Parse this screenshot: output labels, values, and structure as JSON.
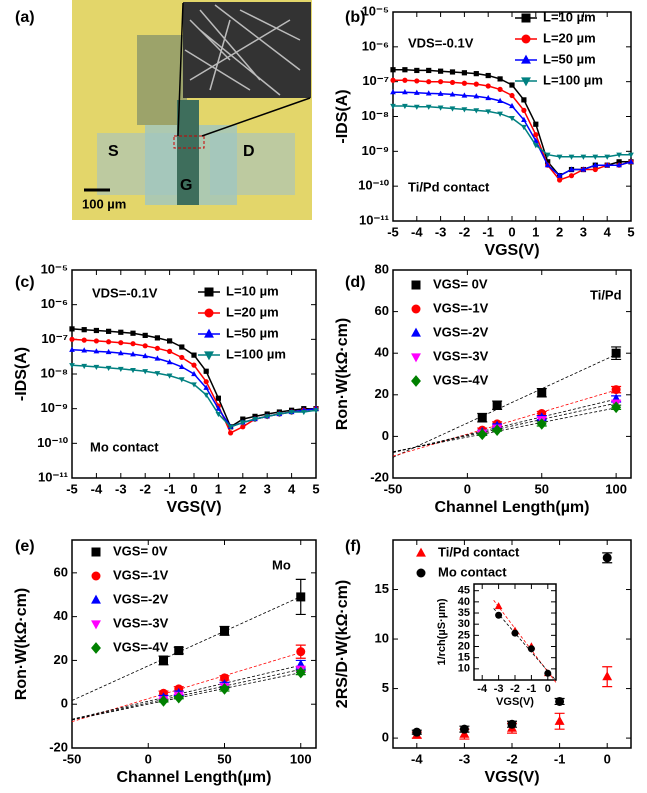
{
  "panel_a": {
    "label": "(a)",
    "source": "S",
    "drain": "D",
    "gate": "G",
    "scale_bar": "100 µm"
  },
  "chart_data": [
    {
      "type": "line",
      "panel_label": "(b)",
      "xlabel": "VGS(V)",
      "ylabel": "-IDS(A)",
      "log_y": true,
      "annotations": [
        "VDS=-0.1V",
        "Ti/Pd contact"
      ],
      "legend": "upper right",
      "x": [
        -5,
        -4.5,
        -4,
        -3.5,
        -3,
        -2.5,
        -2,
        -1.5,
        -1,
        -0.5,
        0,
        0.5,
        1,
        1.5,
        2,
        2.5,
        3,
        3.5,
        4,
        4.5,
        5
      ],
      "xlim": [
        -5,
        5
      ],
      "xticks": [
        -5,
        -4,
        -3,
        -2,
        -1,
        0,
        1,
        2,
        3,
        4,
        5
      ],
      "ylim": [
        1e-11,
        1e-05
      ],
      "yticks": [
        {
          "value": 1e-11,
          "label": "10⁻¹¹"
        },
        {
          "value": 1e-10,
          "label": "10⁻¹⁰"
        },
        {
          "value": 1e-09,
          "label": "10⁻⁹"
        },
        {
          "value": 1e-08,
          "label": "10⁻⁸"
        },
        {
          "value": 1e-07,
          "label": "10⁻⁷"
        },
        {
          "value": 1e-06,
          "label": "10⁻⁶"
        },
        {
          "value": 1e-05,
          "label": "10⁻⁵"
        }
      ],
      "series": [
        {
          "name": "L=10 µm",
          "color": "#000000",
          "marker": "square",
          "values": [
            2.2e-07,
            2.2e-07,
            2.1e-07,
            2.1e-07,
            2e-07,
            1.9e-07,
            1.8e-07,
            1.7e-07,
            1.5e-07,
            1.2e-07,
            8e-08,
            3e-08,
            6e-09,
            5e-10,
            2e-10,
            3e-10,
            3e-10,
            4e-10,
            4e-10,
            5e-10,
            5e-10
          ]
        },
        {
          "name": "L=20 µm",
          "color": "#ff0000",
          "marker": "circle",
          "values": [
            1.1e-07,
            1.1e-07,
            1.05e-07,
            1e-07,
            1e-07,
            9.5e-08,
            9e-08,
            8.5e-08,
            7.5e-08,
            6e-08,
            4e-08,
            1.5e-08,
            3e-09,
            4e-10,
            1.5e-10,
            2e-10,
            3e-10,
            3e-10,
            4e-10,
            4e-10,
            5e-10
          ]
        },
        {
          "name": "L=50 µm",
          "color": "#0000ff",
          "marker": "triangle",
          "values": [
            5e-08,
            5e-08,
            4.8e-08,
            4.6e-08,
            4.5e-08,
            4.3e-08,
            4e-08,
            3.8e-08,
            3.4e-08,
            2.8e-08,
            2e-08,
            8e-09,
            2e-09,
            4e-10,
            2e-10,
            3e-10,
            3e-10,
            4e-10,
            4e-10,
            4e-10,
            5e-10
          ]
        },
        {
          "name": "L=100 µm",
          "color": "#008080",
          "marker": "triangle-down",
          "values": [
            2e-08,
            2e-08,
            1.9e-08,
            1.9e-08,
            1.8e-08,
            1.7e-08,
            1.6e-08,
            1.5e-08,
            1.4e-08,
            1.2e-08,
            9e-09,
            5e-09,
            1.5e-09,
            8e-10,
            7e-10,
            7e-10,
            7e-10,
            7e-10,
            7e-10,
            8e-10,
            8e-10
          ]
        }
      ]
    },
    {
      "type": "line",
      "panel_label": "(c)",
      "xlabel": "VGS(V)",
      "ylabel": "-IDS(A)",
      "log_y": true,
      "annotations": [
        "VDS=-0.1V",
        "Mo contact"
      ],
      "legend": "upper right",
      "x": [
        -5,
        -4.5,
        -4,
        -3.5,
        -3,
        -2.5,
        -2,
        -1.5,
        -1,
        -0.5,
        0,
        0.5,
        1,
        1.5,
        2,
        2.5,
        3,
        3.5,
        4,
        4.5,
        5
      ],
      "xlim": [
        -5,
        5
      ],
      "xticks": [
        -5,
        -4,
        -3,
        -2,
        -1,
        0,
        1,
        2,
        3,
        4,
        5
      ],
      "ylim": [
        1e-11,
        1e-05
      ],
      "yticks": [
        {
          "value": 1e-11,
          "label": "10⁻¹¹"
        },
        {
          "value": 1e-10,
          "label": "10⁻¹⁰"
        },
        {
          "value": 1e-09,
          "label": "10⁻⁹"
        },
        {
          "value": 1e-08,
          "label": "10⁻⁸"
        },
        {
          "value": 1e-07,
          "label": "10⁻⁷"
        },
        {
          "value": 1e-06,
          "label": "10⁻⁶"
        },
        {
          "value": 1e-05,
          "label": "10⁻⁵"
        }
      ],
      "series": [
        {
          "name": "L=10 µm",
          "color": "#000000",
          "marker": "square",
          "values": [
            2e-07,
            1.9e-07,
            1.8e-07,
            1.7e-07,
            1.6e-07,
            1.5e-07,
            1.3e-07,
            1.1e-07,
            9e-08,
            6e-08,
            3.5e-08,
            1.2e-08,
            2e-09,
            3e-10,
            5e-10,
            6e-10,
            7e-10,
            8e-10,
            9e-10,
            1e-09,
            1e-09
          ]
        },
        {
          "name": "L=20 µm",
          "color": "#ff0000",
          "marker": "circle",
          "values": [
            1e-07,
            9.5e-08,
            9e-08,
            8.5e-08,
            8e-08,
            7.5e-08,
            6.5e-08,
            5.5e-08,
            4.5e-08,
            3e-08,
            1.8e-08,
            6e-09,
            1.2e-09,
            2e-10,
            3e-10,
            5e-10,
            6e-10,
            7e-10,
            8e-10,
            9e-10,
            1e-09
          ]
        },
        {
          "name": "L=50 µm",
          "color": "#0000ff",
          "marker": "triangle",
          "values": [
            5e-08,
            4.8e-08,
            4.5e-08,
            4.3e-08,
            4e-08,
            3.7e-08,
            3.3e-08,
            2.8e-08,
            2.2e-08,
            1.6e-08,
            1e-08,
            4e-09,
            1e-09,
            3e-10,
            4e-10,
            5e-10,
            6e-10,
            7e-10,
            8e-10,
            9e-10,
            1e-09
          ]
        },
        {
          "name": "L=100 µm",
          "color": "#008080",
          "marker": "triangle-down",
          "values": [
            1.8e-08,
            1.7e-08,
            1.6e-08,
            1.5e-08,
            1.4e-08,
            1.3e-08,
            1.2e-08,
            1.05e-08,
            9e-09,
            7e-09,
            5e-09,
            2.5e-09,
            7e-10,
            3e-10,
            4e-10,
            5e-10,
            6e-10,
            7e-10,
            8e-10,
            8e-10,
            9e-10
          ]
        }
      ]
    },
    {
      "type": "scatter",
      "panel_label": "(d)",
      "xlabel": "Channel Length(µm)",
      "ylabel": "Ron·W(kΩ·cm)",
      "fit": true,
      "annotations": [
        "Ti/Pd"
      ],
      "legend": "upper left",
      "x": [
        10,
        20,
        50,
        100
      ],
      "xlim": [
        -50,
        110
      ],
      "xticks": [
        -50,
        0,
        50,
        100
      ],
      "ylim": [
        -20,
        80
      ],
      "yticks": [
        -20,
        0,
        20,
        40,
        60,
        80
      ],
      "series": [
        {
          "name": "VGS= 0V",
          "color": "#000000",
          "marker": "square",
          "values": [
            9,
            15,
            21,
            40
          ],
          "errors": [
            2,
            2,
            2,
            3
          ]
        },
        {
          "name": "VGS=-1V",
          "color": "#ff0000",
          "marker": "circle",
          "values": [
            3,
            6,
            11,
            22.5
          ],
          "errors": [
            1,
            1,
            1,
            1.5
          ]
        },
        {
          "name": "VGS=-2V",
          "color": "#0000ff",
          "marker": "triangle",
          "values": [
            2,
            5,
            9,
            18
          ],
          "errors": [
            1,
            1,
            1,
            1.5
          ]
        },
        {
          "name": "VGS=-3V",
          "color": "#ff00ff",
          "marker": "triangle-down",
          "values": [
            1.5,
            4,
            8,
            16
          ],
          "errors": [
            0.5,
            0.5,
            1,
            1
          ]
        },
        {
          "name": "VGS=-4V",
          "color": "#008000",
          "marker": "diamond",
          "values": [
            1,
            3,
            6,
            14
          ],
          "errors": [
            0.5,
            0.5,
            1,
            1
          ]
        }
      ]
    },
    {
      "type": "scatter",
      "panel_label": "(e)",
      "xlabel": "Channel Length(µm)",
      "ylabel": "Ron·W(kΩ·cm)",
      "fit": true,
      "annotations": [
        "Mo"
      ],
      "legend": "upper left",
      "x": [
        10,
        20,
        50,
        100
      ],
      "xlim": [
        -50,
        110
      ],
      "xticks": [
        -50,
        0,
        50,
        100
      ],
      "ylim": [
        -20,
        75
      ],
      "yticks": [
        -20,
        0,
        20,
        40,
        60
      ],
      "series": [
        {
          "name": "VGS= 0V",
          "color": "#000000",
          "marker": "square",
          "values": [
            20,
            24.5,
            33.5,
            49
          ],
          "errors": [
            2,
            1.5,
            2,
            8
          ]
        },
        {
          "name": "VGS=-1V",
          "color": "#ff0000",
          "marker": "circle",
          "values": [
            5,
            7,
            12,
            24
          ],
          "errors": [
            1,
            1,
            1,
            3
          ]
        },
        {
          "name": "VGS=-2V",
          "color": "#0000ff",
          "marker": "triangle",
          "values": [
            3,
            5,
            9,
            18
          ],
          "errors": [
            1,
            1,
            1,
            2
          ]
        },
        {
          "name": "VGS=-3V",
          "color": "#ff00ff",
          "marker": "triangle-down",
          "values": [
            2,
            4,
            8,
            16
          ],
          "errors": [
            0.5,
            0.5,
            1,
            1
          ]
        },
        {
          "name": "VGS=-4V",
          "color": "#008000",
          "marker": "diamond",
          "values": [
            1.5,
            3,
            7,
            14.5
          ],
          "errors": [
            0.5,
            0.5,
            1,
            1
          ]
        }
      ]
    },
    {
      "type": "scatter",
      "panel_label": "(f)",
      "xlabel": "VGS(V)",
      "ylabel": "2RS/D·W(kΩ·cm)",
      "legend": "upper left",
      "x": [
        -4,
        -3,
        -2,
        -1,
        0
      ],
      "xlim": [
        -4.5,
        0.5
      ],
      "xticks": [
        -4,
        -3,
        -2,
        -1,
        0
      ],
      "ylim": [
        -1,
        20
      ],
      "yticks": [
        0,
        5,
        10,
        15
      ],
      "series": [
        {
          "name": "Ti/Pd contact",
          "color": "#ff0000",
          "marker": "triangle",
          "values": [
            0.3,
            0.4,
            1.0,
            1.7,
            6.2
          ],
          "errors": [
            0.3,
            0.5,
            0.5,
            0.8,
            1.0
          ]
        },
        {
          "name": "Mo contact",
          "color": "#000000",
          "marker": "circle",
          "values": [
            0.6,
            0.9,
            1.4,
            3.7,
            18.2
          ],
          "errors": [
            0.2,
            0.3,
            0.3,
            0.3,
            0.5
          ]
        }
      ]
    },
    {
      "type": "scatter",
      "xlabel": "VGS(V)",
      "ylabel": "1/rch(µS·µm)",
      "fit": true,
      "x": [
        -3,
        -2,
        -1,
        0
      ],
      "xlim": [
        -4.5,
        0.5
      ],
      "xticks": [
        -4,
        -3,
        -2,
        -1,
        0
      ],
      "ylim": [
        5,
        48
      ],
      "yticks": [
        10,
        15,
        20,
        25,
        30,
        35,
        40,
        45
      ],
      "series": [
        {
          "color": "#ff0000",
          "marker": "triangle",
          "values": [
            38,
            27,
            20,
            8
          ]
        },
        {
          "color": "#000000",
          "marker": "circle",
          "values": [
            34,
            26,
            19,
            8
          ]
        }
      ]
    }
  ]
}
